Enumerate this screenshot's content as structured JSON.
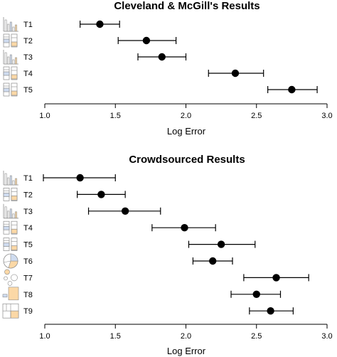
{
  "chart_data": [
    {
      "type": "scatter",
      "title": "Cleveland & McGill's Results",
      "xlabel": "Log Error",
      "ylabel": "",
      "xlim": [
        1.0,
        3.0
      ],
      "xticks": [
        "1.0",
        "1.5",
        "2.0",
        "2.5",
        "3.0"
      ],
      "grid": false,
      "error_bars": true,
      "categories": [
        "T1",
        "T2",
        "T3",
        "T4",
        "T5"
      ],
      "values": [
        1.39,
        1.72,
        1.83,
        2.35,
        2.75
      ],
      "ci_low": [
        1.25,
        1.52,
        1.66,
        2.16,
        2.58
      ],
      "ci_high": [
        1.53,
        1.93,
        2.0,
        2.55,
        2.93
      ],
      "icons": [
        "bar-chart-icon",
        "stacked-bar-icon",
        "bar-chart-icon",
        "stacked-bar-icon",
        "stacked-bar-icon"
      ]
    },
    {
      "type": "scatter",
      "title": "Crowdsourced Results",
      "xlabel": "Log Error",
      "ylabel": "",
      "xlim": [
        1.0,
        3.0
      ],
      "xticks": [
        "1.0",
        "1.5",
        "2.0",
        "2.5",
        "3.0"
      ],
      "grid": false,
      "error_bars": true,
      "categories": [
        "T1",
        "T2",
        "T3",
        "T4",
        "T5",
        "T6",
        "T7",
        "T8",
        "T9"
      ],
      "values": [
        1.25,
        1.4,
        1.57,
        1.99,
        2.25,
        2.19,
        2.64,
        2.5,
        2.6
      ],
      "ci_low": [
        0.99,
        1.23,
        1.31,
        1.76,
        2.02,
        2.05,
        2.41,
        2.32,
        2.45
      ],
      "ci_high": [
        1.5,
        1.57,
        1.82,
        2.21,
        2.49,
        2.33,
        2.87,
        2.67,
        2.76
      ],
      "icons": [
        "bar-chart-icon",
        "stacked-bar-icon",
        "bar-chart-icon",
        "stacked-bar-icon",
        "stacked-bar-icon",
        "pie-chart-icon",
        "bubble-chart-icon",
        "square-area-icon",
        "treemap-icon"
      ]
    }
  ],
  "colors": {
    "marker": "#000000",
    "icon_stroke": "#8c8c8c",
    "icon_fill_blue": "#cfdcf0",
    "icon_fill_orange": "#fbd8a6"
  }
}
